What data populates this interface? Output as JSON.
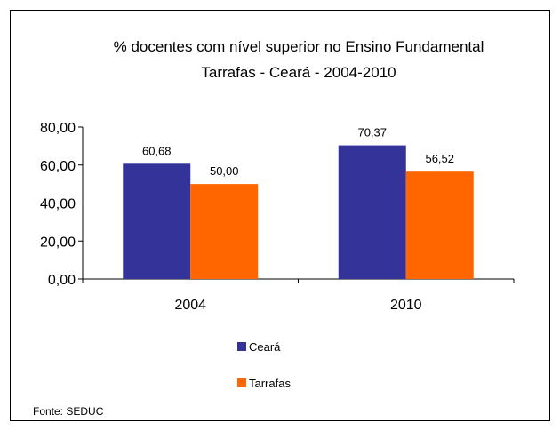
{
  "chart_data": {
    "type": "bar",
    "title_lines": [
      "% docentes com nível  superior no Ensino Fundamental",
      "Tarrafas - Ceará - 2004-2010"
    ],
    "categories": [
      "2004",
      "2010"
    ],
    "series": [
      {
        "name": "Ceará",
        "color": "#333399",
        "values": [
          60.68,
          70.37
        ],
        "labels": [
          "60,68",
          "70,37"
        ]
      },
      {
        "name": "Tarrafas",
        "color": "#FF6600",
        "values": [
          50.0,
          56.52
        ],
        "labels": [
          "50,00",
          "56,52"
        ]
      }
    ],
    "ylim": [
      0,
      80
    ],
    "yticks": [
      0,
      20,
      40,
      60,
      80
    ],
    "ytick_labels": [
      "0,00",
      "20,00",
      "40,00",
      "60,00",
      "80,00"
    ],
    "grid": false,
    "legend_position": "bottom"
  },
  "source": "Fonte: SEDUC"
}
